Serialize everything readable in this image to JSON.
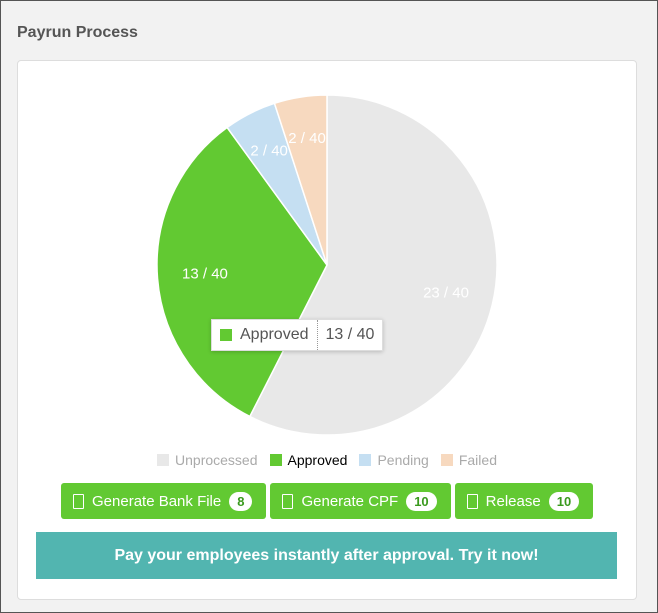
{
  "header": {
    "title": "Payrun Process"
  },
  "chart_data": {
    "type": "pie",
    "categories": [
      "Unprocessed",
      "Approved",
      "Pending",
      "Failed"
    ],
    "values": [
      23,
      13,
      2,
      2
    ],
    "value_labels": [
      "23 / 40",
      "13 / 40",
      "2 / 40",
      "2 / 40"
    ],
    "colors": [
      "#e8e8e8",
      "#62c932",
      "#c5dff2",
      "#f7d9bf"
    ],
    "legend": "bottom"
  },
  "buttons": [
    {
      "label": "Generate Bank File",
      "badge": "8"
    },
    {
      "label": "Generate CPF",
      "badge": "10"
    },
    {
      "label": "Release",
      "badge": "10"
    }
  ],
  "banner": {
    "text": "Pay your employees instantly after approval. Try it now!"
  }
}
